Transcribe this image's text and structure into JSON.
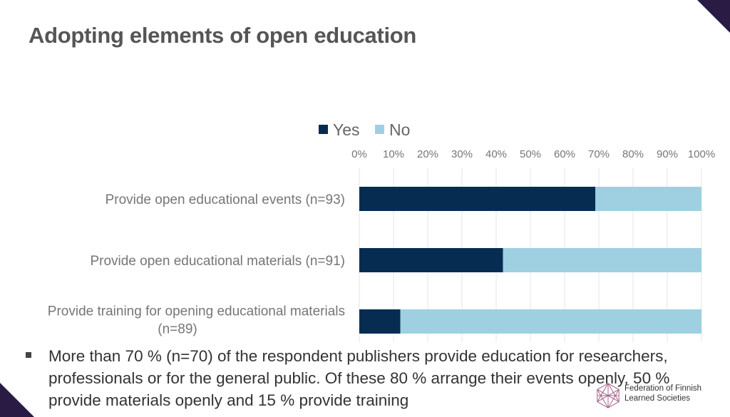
{
  "page": {
    "title": "Adopting elements of open education",
    "bullet": "More than 70 % (n=70) of the respondent publishers provide education for researchers, professionals or for the general public. Of these 80 % arrange their events openly, 50 % provide materials openly and 15 % provide training"
  },
  "logo": {
    "line1": "Federation of Finnish",
    "line2": "Learned Societies"
  },
  "colors": {
    "yes": "#062c52",
    "no": "#9fd0e2",
    "title": "#555555",
    "text": "#333333",
    "label": "#767676",
    "grid": "#e6e6e6",
    "accent": "#2a1b45"
  },
  "chart_data": {
    "type": "bar",
    "orientation": "horizontal",
    "stacked": true,
    "categories": [
      "Provide open educational events (n=93)",
      "Provide open educational materials (n=91)",
      "Provide training for opening educational materials (n=89)"
    ],
    "series": [
      {
        "name": "Yes",
        "values": [
          69,
          42,
          12
        ]
      },
      {
        "name": "No",
        "values": [
          31,
          58,
          88
        ]
      }
    ],
    "xlim": [
      0,
      100
    ],
    "xticks": [
      "0%",
      "10%",
      "20%",
      "30%",
      "40%",
      "50%",
      "60%",
      "70%",
      "80%",
      "90%",
      "100%"
    ],
    "legend": "top",
    "axis": "top",
    "grid": true
  }
}
